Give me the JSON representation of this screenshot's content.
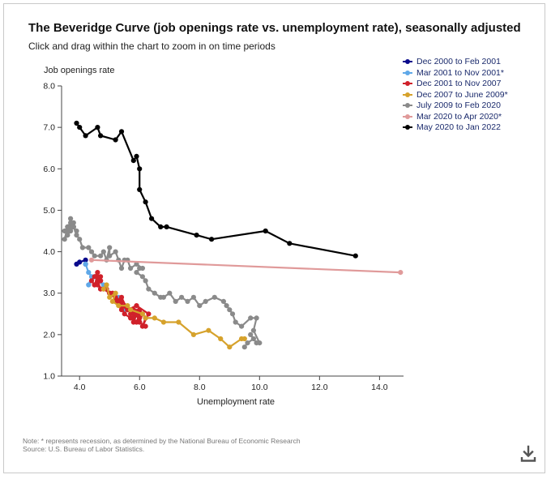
{
  "title": "The Beveridge Curve (job openings rate vs. unemployment rate), seasonally adjusted",
  "subtitle": "Click and drag within the chart to zoom in on time periods",
  "notes": {
    "note": "Note: * represents recession, as determined by the National Bureau of Economic Research",
    "source": "Source: U.S. Bureau of Labor Statistics."
  },
  "icons": {
    "download": "download-icon"
  },
  "chart_data": {
    "type": "line",
    "title": "",
    "xlabel": "Unemployment rate",
    "ylabel": "Job openings rate",
    "xlim": [
      3.4,
      14.8
    ],
    "ylim": [
      1.0,
      8.0
    ],
    "x_ticks": [
      "4.0",
      "6.0",
      "8.0",
      "10.0",
      "12.0",
      "14.0"
    ],
    "x_tick_values": [
      4,
      6,
      8,
      10,
      12,
      14
    ],
    "y_ticks": [
      "1.0",
      "2.0",
      "3.0",
      "4.0",
      "5.0",
      "6.0",
      "7.0",
      "8.0"
    ],
    "y_tick_values": [
      1,
      2,
      3,
      4,
      5,
      6,
      7,
      8
    ],
    "grid": false,
    "legend_position": "top-right",
    "series": [
      {
        "name": "Dec 2000 to Feb 2001",
        "color": "#0a0a8c",
        "points": [
          [
            3.9,
            3.7
          ],
          [
            4.0,
            3.75
          ],
          [
            4.2,
            3.8
          ],
          [
            4.2,
            3.7
          ]
        ]
      },
      {
        "name": "Mar 2001 to Nov 2001*",
        "color": "#5fa8e8",
        "points": [
          [
            4.2,
            3.7
          ],
          [
            4.3,
            3.5
          ],
          [
            4.4,
            3.4
          ],
          [
            4.3,
            3.2
          ],
          [
            4.5,
            3.4
          ],
          [
            4.6,
            3.3
          ],
          [
            4.8,
            3.2
          ],
          [
            5.0,
            3.0
          ],
          [
            5.3,
            2.9
          ],
          [
            5.5,
            2.6
          ]
        ]
      },
      {
        "name": "Dec 2001 to Nov 2007",
        "color": "#d0202a",
        "points": [
          [
            5.7,
            2.6
          ],
          [
            5.8,
            2.5
          ],
          [
            5.8,
            2.4
          ],
          [
            5.9,
            2.3
          ],
          [
            6.0,
            2.5
          ],
          [
            5.7,
            2.5
          ],
          [
            6.0,
            2.4
          ],
          [
            6.0,
            2.3
          ],
          [
            6.1,
            2.5
          ],
          [
            5.8,
            2.6
          ],
          [
            6.0,
            2.6
          ],
          [
            6.2,
            2.4
          ],
          [
            6.1,
            2.2
          ],
          [
            6.3,
            2.5
          ],
          [
            5.9,
            2.7
          ],
          [
            5.6,
            2.6
          ],
          [
            5.4,
            2.7
          ],
          [
            5.4,
            2.8
          ],
          [
            5.2,
            2.9
          ],
          [
            5.1,
            3.0
          ],
          [
            5.0,
            3.0
          ],
          [
            4.9,
            3.1
          ],
          [
            4.7,
            3.1
          ],
          [
            4.6,
            3.2
          ],
          [
            4.7,
            3.3
          ],
          [
            4.5,
            3.4
          ],
          [
            4.6,
            3.5
          ],
          [
            4.4,
            3.3
          ],
          [
            4.5,
            3.2
          ],
          [
            4.6,
            3.4
          ],
          [
            4.7,
            3.3
          ],
          [
            4.5,
            3.2
          ],
          [
            4.7,
            3.4
          ],
          [
            4.6,
            3.3
          ],
          [
            4.7,
            3.1
          ],
          [
            4.8,
            3.1
          ],
          [
            5.0,
            3.0
          ],
          [
            5.3,
            2.8
          ],
          [
            5.5,
            2.7
          ],
          [
            5.4,
            2.6
          ],
          [
            5.2,
            2.8
          ],
          [
            5.4,
            2.9
          ],
          [
            5.6,
            2.6
          ],
          [
            5.3,
            2.8
          ],
          [
            5.5,
            2.5
          ],
          [
            5.7,
            2.4
          ],
          [
            5.9,
            2.5
          ],
          [
            5.8,
            2.3
          ],
          [
            6.0,
            2.3
          ],
          [
            6.2,
            2.2
          ]
        ]
      },
      {
        "name": "Dec 2007 to June 2009*",
        "color": "#d6a22c",
        "points": [
          [
            4.8,
            3.1
          ],
          [
            4.9,
            3.2
          ],
          [
            5.0,
            2.9
          ],
          [
            5.2,
            3.0
          ],
          [
            5.1,
            2.8
          ],
          [
            5.3,
            2.7
          ],
          [
            5.6,
            2.7
          ],
          [
            5.7,
            2.6
          ],
          [
            6.1,
            2.5
          ],
          [
            6.2,
            2.4
          ],
          [
            6.5,
            2.4
          ],
          [
            6.8,
            2.3
          ],
          [
            7.3,
            2.3
          ],
          [
            7.8,
            2.0
          ],
          [
            8.3,
            2.1
          ],
          [
            8.7,
            1.9
          ],
          [
            9.0,
            1.7
          ],
          [
            9.4,
            1.9
          ],
          [
            9.5,
            1.9
          ]
        ]
      },
      {
        "name": "July 2009 to Feb 2020",
        "color": "#8a8a8a",
        "points": [
          [
            9.5,
            1.7
          ],
          [
            9.6,
            1.8
          ],
          [
            9.8,
            1.9
          ],
          [
            9.7,
            2.0
          ],
          [
            9.9,
            1.8
          ],
          [
            10.0,
            1.8
          ],
          [
            9.8,
            2.1
          ],
          [
            9.9,
            2.4
          ],
          [
            9.7,
            2.4
          ],
          [
            9.4,
            2.2
          ],
          [
            9.2,
            2.3
          ],
          [
            9.1,
            2.5
          ],
          [
            8.9,
            2.7
          ],
          [
            9.0,
            2.6
          ],
          [
            8.8,
            2.8
          ],
          [
            8.5,
            2.9
          ],
          [
            8.2,
            2.8
          ],
          [
            8.0,
            2.7
          ],
          [
            7.8,
            2.9
          ],
          [
            7.6,
            2.8
          ],
          [
            7.4,
            2.9
          ],
          [
            7.2,
            2.8
          ],
          [
            7.0,
            3.0
          ],
          [
            6.8,
            2.9
          ],
          [
            6.7,
            2.9
          ],
          [
            6.5,
            3.0
          ],
          [
            6.3,
            3.1
          ],
          [
            6.2,
            3.3
          ],
          [
            6.1,
            3.4
          ],
          [
            5.9,
            3.5
          ],
          [
            6.0,
            3.6
          ],
          [
            6.1,
            3.6
          ],
          [
            5.9,
            3.7
          ],
          [
            5.7,
            3.6
          ],
          [
            5.6,
            3.8
          ],
          [
            5.5,
            3.8
          ],
          [
            5.4,
            3.6
          ],
          [
            5.3,
            3.8
          ],
          [
            5.2,
            4.0
          ],
          [
            5.0,
            3.9
          ],
          [
            5.0,
            4.1
          ],
          [
            4.9,
            3.8
          ],
          [
            4.8,
            4.0
          ],
          [
            4.7,
            3.9
          ],
          [
            4.5,
            3.9
          ],
          [
            4.4,
            4.0
          ],
          [
            4.3,
            4.1
          ],
          [
            4.1,
            4.1
          ],
          [
            4.0,
            4.3
          ],
          [
            3.9,
            4.4
          ],
          [
            3.8,
            4.6
          ],
          [
            3.7,
            4.6
          ],
          [
            3.6,
            4.5
          ],
          [
            3.7,
            4.8
          ],
          [
            3.8,
            4.6
          ],
          [
            3.6,
            4.4
          ],
          [
            3.5,
            4.5
          ],
          [
            3.6,
            4.6
          ],
          [
            3.7,
            4.7
          ],
          [
            3.8,
            4.7
          ],
          [
            3.7,
            4.5
          ],
          [
            3.5,
            4.3
          ],
          [
            3.6,
            4.6
          ],
          [
            3.8,
            4.6
          ],
          [
            3.9,
            4.5
          ]
        ]
      },
      {
        "name": "Mar 2020 to Apr 2020*",
        "color": "#e09a9a",
        "points": [
          [
            4.4,
            3.8
          ],
          [
            14.7,
            3.5
          ]
        ]
      },
      {
        "name": "May 2020 to Jan 2022",
        "color": "#000000",
        "points": [
          [
            13.2,
            3.9
          ],
          [
            11.0,
            4.2
          ],
          [
            10.2,
            4.5
          ],
          [
            8.4,
            4.3
          ],
          [
            7.9,
            4.4
          ],
          [
            6.9,
            4.6
          ],
          [
            6.7,
            4.6
          ],
          [
            6.4,
            4.8
          ],
          [
            6.2,
            5.2
          ],
          [
            6.0,
            5.5
          ],
          [
            6.0,
            6.0
          ],
          [
            5.9,
            6.3
          ],
          [
            5.8,
            6.2
          ],
          [
            5.4,
            6.9
          ],
          [
            5.2,
            6.7
          ],
          [
            4.7,
            6.8
          ],
          [
            4.6,
            7.0
          ],
          [
            4.2,
            6.8
          ],
          [
            4.0,
            7.0
          ],
          [
            3.9,
            7.1
          ]
        ]
      }
    ]
  }
}
